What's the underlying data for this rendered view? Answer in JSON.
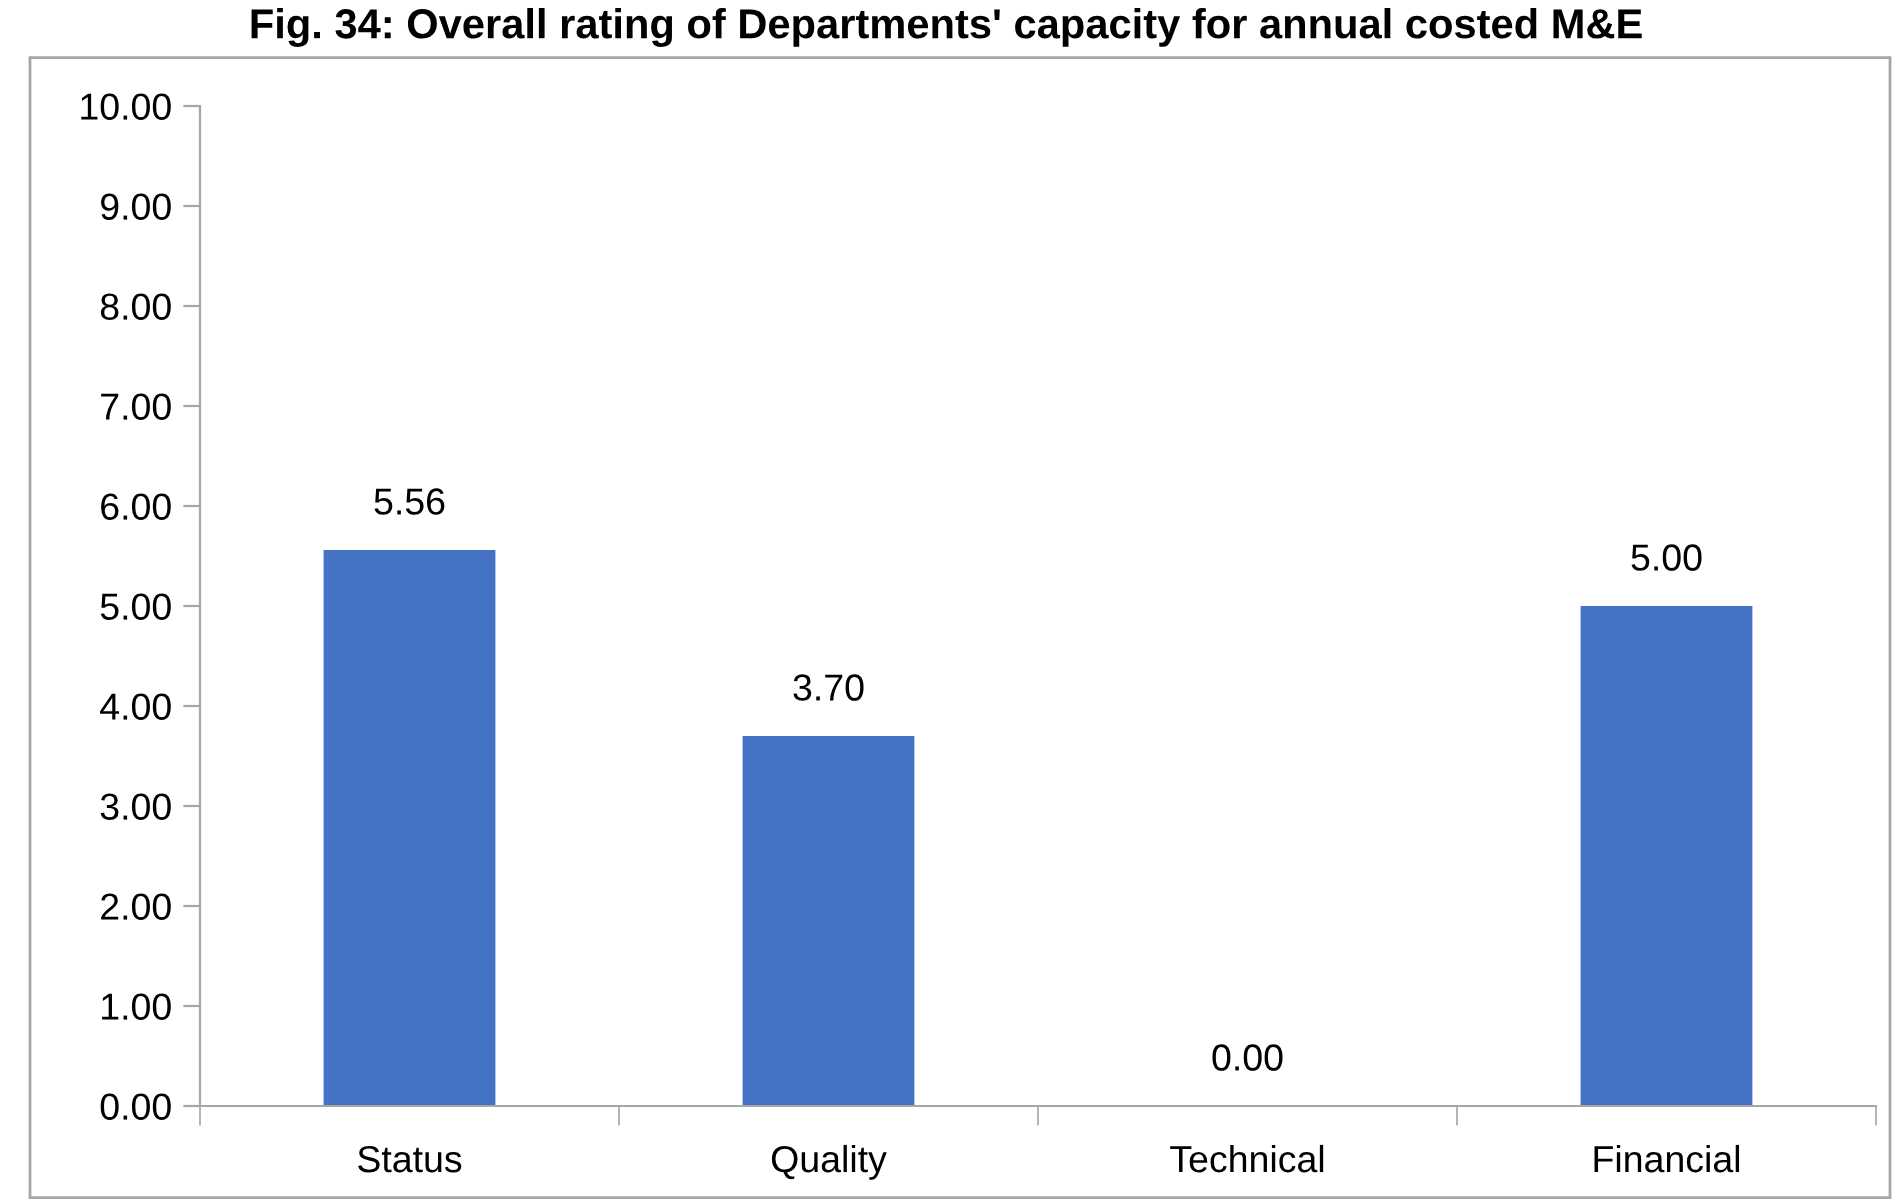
{
  "chart_data": {
    "type": "bar",
    "title": "Fig. 34: Overall rating of Departments' capacity for annual costed M&E",
    "categories": [
      "Status",
      "Quality",
      "Technical",
      "Financial"
    ],
    "values": [
      5.56,
      3.7,
      0,
      5
    ],
    "value_labels": [
      "5.56",
      "3.70",
      "0.00",
      "5.00"
    ],
    "color": "#4472c4",
    "ylim": [
      0,
      10
    ],
    "yticks": [
      {
        "value": 0,
        "label": "0.00"
      },
      {
        "value": 1,
        "label": "1.00"
      },
      {
        "value": 2,
        "label": "2.00"
      },
      {
        "value": 3,
        "label": "3.00"
      },
      {
        "value": 4,
        "label": "4.00"
      },
      {
        "value": 5,
        "label": "5.00"
      },
      {
        "value": 6,
        "label": "6.00"
      },
      {
        "value": 7,
        "label": "7.00"
      },
      {
        "value": 8,
        "label": "8.00"
      },
      {
        "value": 9,
        "label": "9.00"
      },
      {
        "value": 10,
        "label": "10.00"
      }
    ],
    "grid": false,
    "legend": false
  }
}
